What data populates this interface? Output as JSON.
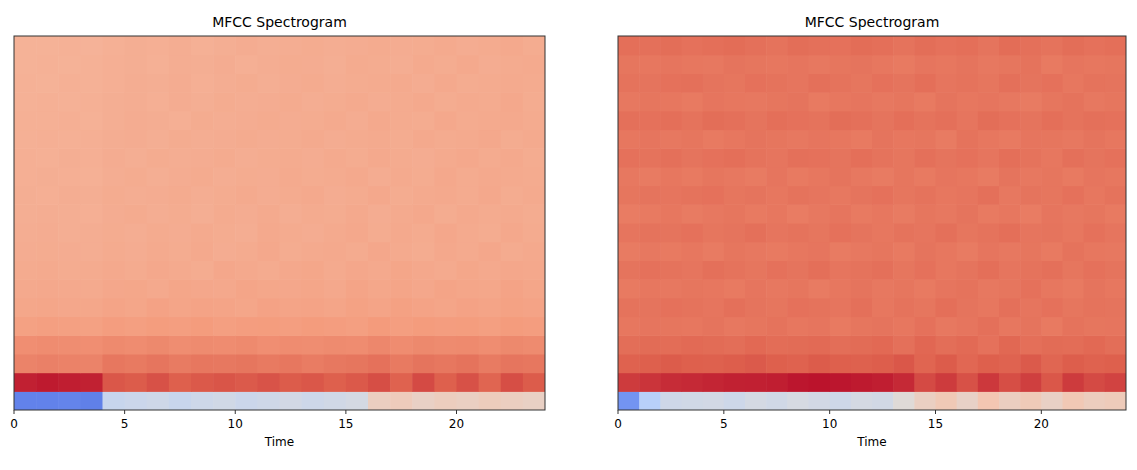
{
  "chart_data": [
    {
      "type": "heatmap",
      "title": "MFCC Spectrogram",
      "x_label": "Time",
      "xlim": [
        0,
        24
      ],
      "xticks": [
        0,
        5,
        10,
        15,
        20
      ],
      "ylim": [
        0,
        20
      ],
      "tick_labels": "x",
      "zlim": [
        -300,
        100
      ],
      "z": [
        [
          -250,
          -250,
          -248,
          -252,
          -130,
          -125,
          -120,
          -128,
          -122,
          -118,
          -125,
          -120,
          -115,
          -122,
          -118,
          -112,
          -70,
          -65,
          -75,
          -68,
          -72,
          -66,
          -70,
          -74
        ],
        [
          85,
          88,
          86,
          84,
          55,
          52,
          58,
          50,
          54,
          56,
          53,
          57,
          52,
          55,
          50,
          54,
          60,
          48,
          62,
          50,
          58,
          46,
          60,
          52
        ],
        [
          20,
          22,
          21,
          20,
          30,
          28,
          32,
          27,
          30,
          29,
          31,
          28,
          30,
          26,
          29,
          31,
          35,
          28,
          33,
          30,
          34,
          27,
          32,
          30
        ],
        [
          10,
          12,
          11,
          10,
          14,
          12,
          15,
          11,
          13,
          12,
          14,
          10,
          12,
          11,
          13,
          12,
          16,
          12,
          15,
          13,
          14,
          11,
          15,
          13
        ],
        [
          -8,
          -6,
          -7,
          -8,
          -4,
          -6,
          -3,
          -5,
          -2,
          -6,
          -4,
          -3,
          -5,
          -2,
          -4,
          -6,
          -1,
          -5,
          -2,
          -4,
          -3,
          -6,
          -2,
          -4
        ],
        [
          -15,
          -14,
          -16,
          -15,
          -12,
          -14,
          -10,
          -13,
          -11,
          -12,
          -14,
          -10,
          -12,
          -11,
          -13,
          -9,
          -12,
          -8,
          -11,
          -13,
          -10,
          -12,
          -9,
          -11
        ],
        [
          -18,
          -17,
          -18,
          -19,
          -16,
          -15,
          -18,
          -14,
          -16,
          -17,
          -13,
          -15,
          -16,
          -14,
          -17,
          -12,
          -15,
          -13,
          -16,
          -12,
          -14,
          -15,
          -11,
          -14
        ],
        [
          -20,
          -19,
          -21,
          -20,
          -18,
          -20,
          -17,
          -19,
          -21,
          -16,
          -18,
          -20,
          -17,
          -15,
          -19,
          -16,
          -18,
          -14,
          -17,
          -19,
          -15,
          -18,
          -16,
          -17
        ],
        [
          -22,
          -21,
          -22,
          -23,
          -20,
          -22,
          -19,
          -21,
          -18,
          -22,
          -20,
          -17,
          -21,
          -19,
          -18,
          -20,
          -16,
          -19,
          -21,
          -17,
          -19,
          -16,
          -20,
          -18
        ],
        [
          -23,
          -22,
          -24,
          -23,
          -21,
          -23,
          -20,
          -22,
          -19,
          -21,
          -23,
          -18,
          -20,
          -22,
          -19,
          -17,
          -21,
          -18,
          -20,
          -16,
          -19,
          -21,
          -17,
          -20
        ],
        [
          -24,
          -23,
          -24,
          -25,
          -22,
          -20,
          -23,
          -21,
          -24,
          -20,
          -22,
          -19,
          -23,
          -20,
          -21,
          -18,
          -22,
          -19,
          -17,
          -21,
          -18,
          -20,
          -19,
          -21
        ],
        [
          -24,
          -25,
          -23,
          -24,
          -21,
          -23,
          -22,
          -20,
          -23,
          -21,
          -19,
          -22,
          -20,
          -18,
          -22,
          -20,
          -17,
          -21,
          -19,
          -18,
          -20,
          -17,
          -21,
          -19
        ],
        [
          -25,
          -24,
          -25,
          -26,
          -23,
          -21,
          -24,
          -22,
          -20,
          -23,
          -21,
          -22,
          -19,
          -21,
          -20,
          -18,
          -22,
          -19,
          -21,
          -17,
          -20,
          -18,
          -19,
          -20
        ],
        [
          -25,
          -26,
          -24,
          -25,
          -22,
          -24,
          -21,
          -23,
          -22,
          -20,
          -23,
          -21,
          -20,
          -22,
          -19,
          -21,
          -18,
          -20,
          -22,
          -19,
          -17,
          -20,
          -18,
          -21
        ],
        [
          -26,
          -25,
          -26,
          -25,
          -23,
          -22,
          -24,
          -21,
          -23,
          -22,
          -20,
          -22,
          -21,
          -19,
          -22,
          -20,
          -19,
          -21,
          -18,
          -20,
          -19,
          -17,
          -21,
          -19
        ],
        [
          -26,
          -26,
          -25,
          -27,
          -24,
          -22,
          -23,
          -25,
          -21,
          -23,
          -22,
          -20,
          -22,
          -21,
          -19,
          -22,
          -18,
          -20,
          -21,
          -17,
          -20,
          -19,
          -18,
          -20
        ],
        [
          -27,
          -26,
          -27,
          -26,
          -24,
          -23,
          -25,
          -22,
          -24,
          -21,
          -23,
          -22,
          -20,
          -23,
          -21,
          -19,
          -22,
          -20,
          -18,
          -21,
          -19,
          -20,
          -17,
          -21
        ],
        [
          -27,
          -28,
          -26,
          -27,
          -25,
          -23,
          -24,
          -22,
          -25,
          -23,
          -21,
          -24,
          -22,
          -20,
          -23,
          -21,
          -20,
          -19,
          -22,
          -18,
          -21,
          -20,
          -19,
          -20
        ],
        [
          -28,
          -27,
          -28,
          -27,
          -25,
          -24,
          -26,
          -23,
          -24,
          -22,
          -25,
          -23,
          -21,
          -22,
          -24,
          -20,
          -21,
          -23,
          -19,
          -21,
          -18,
          -22,
          -20,
          -19
        ],
        [
          -28,
          -28,
          -27,
          -29,
          -26,
          -24,
          -25,
          -23,
          -26,
          -24,
          -22,
          -24,
          -23,
          -21,
          -23,
          -22,
          -20,
          -22,
          -21,
          -19,
          -22,
          -20,
          -18,
          -21
        ]
      ]
    },
    {
      "type": "heatmap",
      "title": "MFCC Spectrogram",
      "x_label": "Time",
      "xlim": [
        0,
        24
      ],
      "xticks": [
        0,
        5,
        10,
        15,
        20
      ],
      "ylim": [
        0,
        20
      ],
      "tick_labels": "x",
      "zlim": [
        -300,
        100
      ],
      "z": [
        [
          -230,
          -150,
          -120,
          -118,
          -115,
          -122,
          -112,
          -118,
          -110,
          -115,
          -120,
          -112,
          -116,
          -95,
          -72,
          -60,
          -78,
          -55,
          -70,
          -62,
          -75,
          -58,
          -68,
          -64
        ],
        [
          70,
          74,
          78,
          80,
          82,
          84,
          85,
          86,
          90,
          92,
          90,
          88,
          86,
          80,
          62,
          70,
          58,
          72,
          60,
          68,
          55,
          70,
          62,
          66
        ],
        [
          48,
          50,
          52,
          50,
          49,
          51,
          53,
          50,
          48,
          52,
          50,
          49,
          51,
          55,
          46,
          52,
          44,
          50,
          47,
          53,
          45,
          51,
          48,
          50
        ],
        [
          38,
          40,
          39,
          41,
          40,
          38,
          42,
          39,
          40,
          41,
          38,
          40,
          42,
          36,
          44,
          38,
          41,
          35,
          43,
          37,
          40,
          39,
          42,
          38
        ],
        [
          30,
          32,
          31,
          30,
          33,
          29,
          31,
          34,
          30,
          32,
          28,
          31,
          33,
          30,
          35,
          29,
          32,
          36,
          30,
          33,
          28,
          34,
          31,
          32
        ],
        [
          34,
          33,
          35,
          34,
          32,
          36,
          33,
          31,
          35,
          34,
          32,
          36,
          30,
          34,
          31,
          37,
          33,
          30,
          36,
          32,
          35,
          31,
          34,
          33
        ],
        [
          28,
          30,
          29,
          31,
          30,
          28,
          32,
          29,
          31,
          27,
          30,
          33,
          29,
          31,
          28,
          32,
          34,
          29,
          31,
          35,
          30,
          28,
          33,
          30
        ],
        [
          33,
          35,
          34,
          32,
          36,
          34,
          31,
          35,
          33,
          37,
          32,
          34,
          36,
          31,
          35,
          30,
          33,
          37,
          32,
          34,
          36,
          31,
          35,
          33
        ],
        [
          27,
          29,
          28,
          30,
          27,
          31,
          29,
          28,
          30,
          32,
          27,
          29,
          31,
          28,
          33,
          30,
          27,
          32,
          29,
          31,
          28,
          34,
          30,
          29
        ],
        [
          32,
          34,
          33,
          35,
          31,
          33,
          36,
          32,
          34,
          31,
          35,
          33,
          30,
          34,
          32,
          36,
          31,
          34,
          37,
          32,
          33,
          30,
          35,
          32
        ],
        [
          26,
          28,
          30,
          27,
          29,
          31,
          28,
          30,
          26,
          29,
          32,
          28,
          30,
          27,
          31,
          29,
          33,
          28,
          30,
          26,
          32,
          29,
          31,
          28
        ],
        [
          31,
          33,
          32,
          34,
          35,
          31,
          33,
          30,
          34,
          32,
          29,
          33,
          35,
          31,
          34,
          30,
          32,
          36,
          29,
          33,
          31,
          35,
          30,
          34
        ],
        [
          29,
          27,
          30,
          28,
          31,
          29,
          27,
          32,
          28,
          30,
          33,
          29,
          27,
          31,
          28,
          32,
          30,
          27,
          33,
          29,
          31,
          28,
          32,
          30
        ],
        [
          35,
          34,
          36,
          33,
          35,
          37,
          34,
          32,
          36,
          35,
          33,
          37,
          34,
          31,
          36,
          33,
          35,
          32,
          37,
          34,
          30,
          36,
          33,
          35
        ],
        [
          30,
          32,
          29,
          31,
          28,
          30,
          33,
          31,
          29,
          32,
          30,
          28,
          33,
          30,
          31,
          27,
          34,
          30,
          28,
          32,
          31,
          29,
          33,
          30
        ],
        [
          36,
          35,
          37,
          34,
          38,
          36,
          33,
          37,
          35,
          34,
          38,
          36,
          33,
          37,
          34,
          36,
          32,
          38,
          35,
          33,
          37,
          34,
          36,
          35
        ],
        [
          29,
          31,
          30,
          28,
          32,
          30,
          29,
          31,
          33,
          28,
          30,
          32,
          29,
          31,
          28,
          33,
          30,
          32,
          29,
          27,
          31,
          34,
          29,
          31
        ],
        [
          34,
          33,
          35,
          36,
          33,
          31,
          35,
          34,
          32,
          36,
          34,
          31,
          35,
          33,
          37,
          32,
          34,
          31,
          36,
          33,
          35,
          30,
          34,
          33
        ],
        [
          31,
          30,
          32,
          30,
          29,
          33,
          31,
          30,
          32,
          29,
          31,
          33,
          30,
          28,
          32,
          30,
          33,
          29,
          31,
          34,
          28,
          32,
          30,
          31
        ],
        [
          37,
          36,
          38,
          35,
          37,
          39,
          36,
          34,
          38,
          36,
          35,
          39,
          37,
          34,
          38,
          35,
          37,
          33,
          39,
          36,
          34,
          38,
          35,
          37
        ]
      ]
    }
  ]
}
